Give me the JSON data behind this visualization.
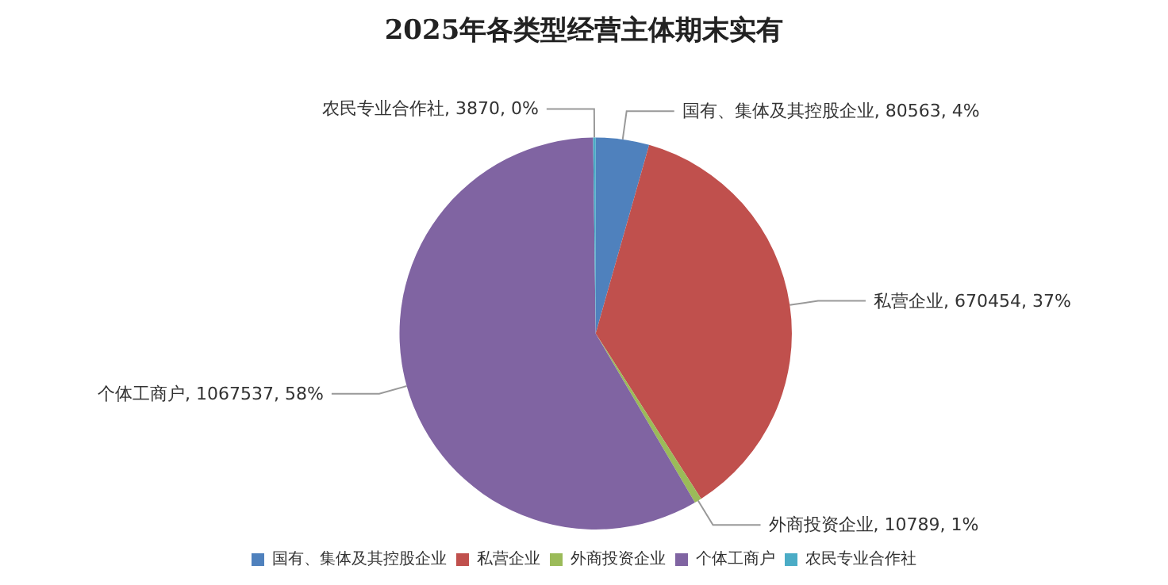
{
  "chart_data": {
    "type": "pie",
    "title": "2025年各类型经营主体期末实有",
    "categories": [
      "国有、集体及其控股企业",
      "私营企业",
      "外商投资企业",
      "个体工商户",
      "农民专业合作社"
    ],
    "values": [
      80563,
      670454,
      10789,
      1067537,
      3870
    ],
    "colors": [
      "#4f81bd",
      "#c0504d",
      "#9bbb59",
      "#8064a2",
      "#4bacc6"
    ],
    "value_labels": [
      "国有、集体及其控股企业, 80563, 4%",
      "私营企业, 670454, 37%",
      "外商投资企业, 10789, 1%",
      "个体工商户, 1067537, 58%",
      "农民专业合作社, 3870, 0%"
    ],
    "legend": "bottom"
  }
}
